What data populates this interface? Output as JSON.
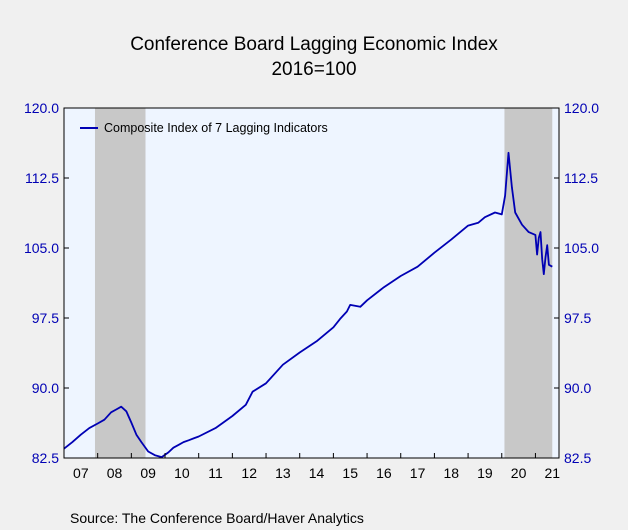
{
  "chart_data": {
    "type": "line",
    "title": "Conference Board Lagging Economic Index",
    "subtitle": "2016=100",
    "source": "Source:  The Conference Board/Haver Analytics",
    "xlim": [
      2007.0,
      2021.7
    ],
    "ylim": [
      82.5,
      120.0
    ],
    "yticks": [
      82.5,
      90.0,
      97.5,
      105.0,
      112.5,
      120.0
    ],
    "ytick_labels": [
      "82.5",
      "90.0",
      "97.5",
      "105.0",
      "112.5",
      "120.0"
    ],
    "xtick_labels": [
      "07",
      "08",
      "09",
      "10",
      "11",
      "12",
      "13",
      "14",
      "15",
      "16",
      "17",
      "18",
      "19",
      "20",
      "21"
    ],
    "xtick_years": [
      2007,
      2008,
      2009,
      2010,
      2011,
      2012,
      2013,
      2014,
      2015,
      2016,
      2017,
      2018,
      2019,
      2020,
      2021
    ],
    "recessions": [
      [
        2007.92,
        2009.42
      ],
      [
        2020.08,
        2021.5
      ]
    ],
    "colors": {
      "plot_bg": "#eef5ff",
      "recession": "#c8c8c8",
      "line": "#0000b4",
      "axis_text": "#0000b4"
    },
    "legend": {
      "position": "top-left"
    },
    "grid": false,
    "series": [
      {
        "name": "Composite Index of 7 Lagging Indicators",
        "x": [
          2007.0,
          2007.25,
          2007.5,
          2007.75,
          2008.0,
          2008.2,
          2008.4,
          2008.55,
          2008.7,
          2008.85,
          2009.0,
          2009.15,
          2009.3,
          2009.5,
          2009.7,
          2009.9,
          2010.1,
          2010.25,
          2010.4,
          2010.55,
          2010.7,
          2010.85,
          2011.0,
          2011.5,
          2012.0,
          2012.4,
          2012.6,
          2013.0,
          2013.5,
          2014.0,
          2014.5,
          2015.0,
          2015.2,
          2015.4,
          2015.5,
          2015.8,
          2016.0,
          2016.5,
          2017.0,
          2017.5,
          2018.0,
          2018.5,
          2019.0,
          2019.3,
          2019.5,
          2019.8,
          2020.0,
          2020.1,
          2020.2,
          2020.3,
          2020.4,
          2020.6,
          2020.8,
          2021.0,
          2021.05,
          2021.1,
          2021.15,
          2021.2,
          2021.25,
          2021.3,
          2021.35,
          2021.4,
          2021.5
        ],
        "values": [
          83.5,
          84.2,
          85.0,
          85.7,
          86.2,
          86.6,
          87.4,
          87.7,
          88.0,
          87.5,
          86.3,
          85.0,
          84.2,
          83.2,
          82.8,
          82.6,
          83.1,
          83.6,
          83.9,
          84.2,
          84.4,
          84.6,
          84.8,
          85.7,
          87.0,
          88.2,
          89.6,
          90.5,
          92.5,
          93.8,
          95.0,
          96.5,
          97.4,
          98.2,
          98.9,
          98.7,
          99.4,
          100.8,
          102.0,
          103.0,
          104.5,
          105.9,
          107.4,
          107.7,
          108.3,
          108.8,
          108.6,
          110.6,
          115.2,
          111.5,
          108.8,
          107.5,
          106.7,
          106.4,
          104.3,
          106.1,
          106.7,
          103.8,
          102.2,
          104.0,
          105.3,
          103.2,
          103.0
        ]
      }
    ]
  }
}
